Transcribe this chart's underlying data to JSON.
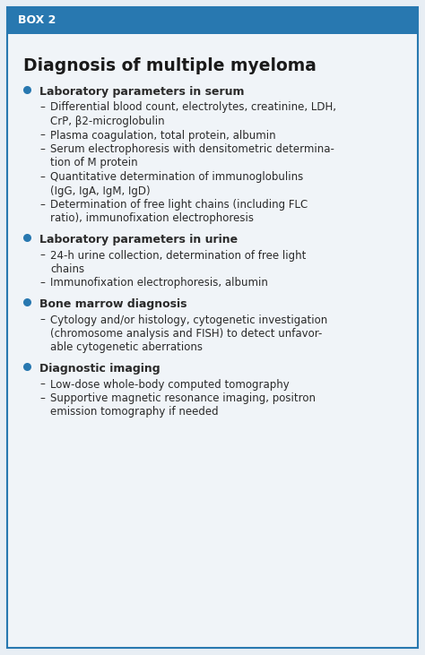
{
  "box_label": "BOX 2",
  "title": "Diagnosis of multiple myeloma",
  "header_bg": "#2878B0",
  "header_text_color": "#FFFFFF",
  "page_bg": "#E8EEF4",
  "box_bg": "#F0F4F8",
  "box_border_color": "#2878B0",
  "title_color": "#1a1a1a",
  "bullet_color": "#2878B0",
  "text_color": "#2a2a2a",
  "sections": [
    {
      "text": "Laboratory parameters in serum",
      "items": [
        [
          "Differential blood count, electrolytes, creatinine, LDH,",
          "CrP, β2-microglobulin"
        ],
        [
          "Plasma coagulation, total protein, albumin"
        ],
        [
          "Serum electrophoresis with densitometric determina-",
          "tion of M protein"
        ],
        [
          "Quantitative determination of immunoglobulins",
          "(IgG, IgA, IgM, IgD)"
        ],
        [
          "Determination of free light chains (including FLC",
          "ratio), immunofixation electrophoresis"
        ]
      ]
    },
    {
      "text": "Laboratory parameters in urine",
      "items": [
        [
          "24-h urine collection, determination of free light",
          "chains"
        ],
        [
          "Immunofixation electrophoresis, albumin"
        ]
      ]
    },
    {
      "text": "Bone marrow diagnosis",
      "items": [
        [
          "Cytology and/or histology, cytogenetic investigation",
          "(chromosome analysis and FISH) to detect unfavor-",
          "able cytogenetic aberrations"
        ]
      ]
    },
    {
      "text": "Diagnostic imaging",
      "items": [
        [
          "Low-dose whole-body computed tomography"
        ],
        [
          "Supportive magnetic resonance imaging, positron",
          "emission tomography if needed"
        ]
      ]
    }
  ]
}
